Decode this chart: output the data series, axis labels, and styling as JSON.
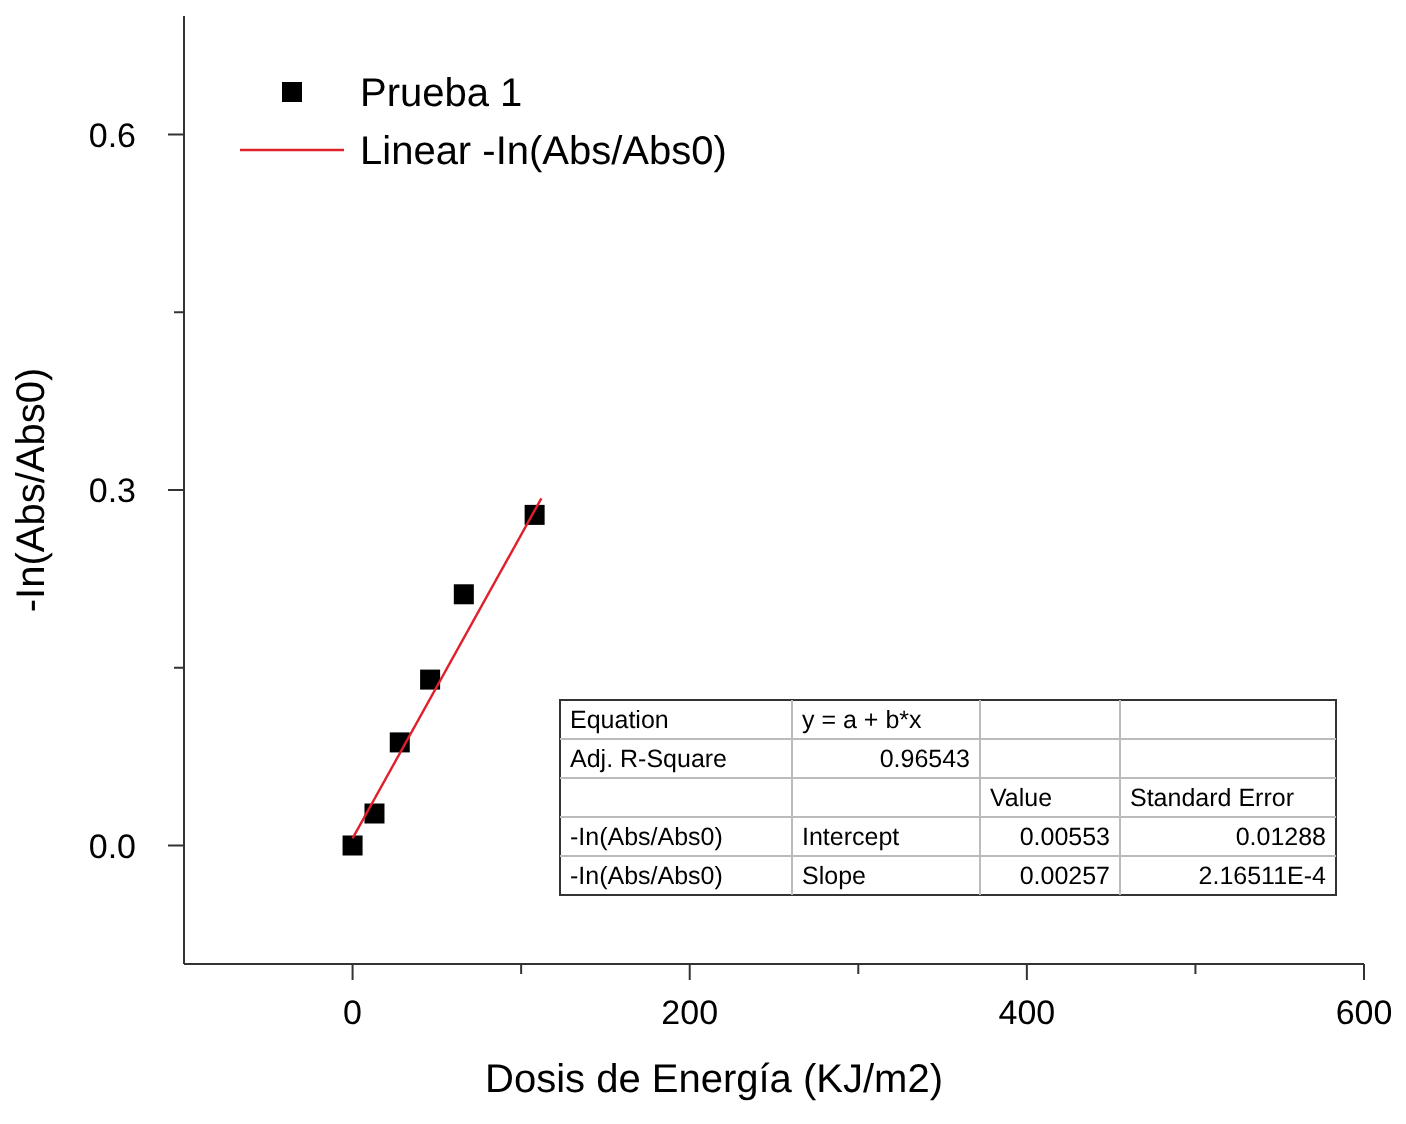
{
  "chart_data": {
    "type": "scatter",
    "xlabel": "Dosis de Energía (KJ/m2)",
    "ylabel": "-In(Abs/Abs0)",
    "xlim": [
      -100,
      600
    ],
    "ylim": [
      -0.1,
      0.7
    ],
    "xticks": [
      0,
      {
        "value": 100,
        "label": null
      },
      200,
      {
        "value": 300,
        "label": null
      },
      400,
      {
        "value": 500,
        "label": null
      },
      600
    ],
    "yticks": [
      {
        "value": 0,
        "label": "0.0"
      },
      {
        "value": 0.15,
        "label": null
      },
      0.3,
      {
        "value": 0.45,
        "label": null
      },
      0.6
    ],
    "grid": false,
    "legend": "top left",
    "series": [
      {
        "name": "Prueba 1",
        "marker": "square",
        "color": "#000000",
        "x": [
          0,
          13,
          28,
          46,
          66,
          108
        ],
        "values": [
          0,
          0.027,
          0.087,
          0.14,
          0.212,
          0.279
        ]
      },
      {
        "name": "Linear -In(Abs/Abs0)",
        "type": "line",
        "marker": "none",
        "line_style": "solid",
        "color": "#e0202a",
        "x": [
          0,
          112
        ],
        "values": [
          0.006,
          0.293
        ]
      }
    ],
    "annotations": [
      "Equation",
      "y = a + b*x",
      "Adj. R-Square",
      "0.96543",
      "Value",
      "Standard Error",
      "-In(Abs/Abs0)",
      "Intercept",
      "0.00553",
      "0.01288",
      "-In(Abs/Abs0)",
      "Slope",
      "0.00257",
      "2.16511E-4"
    ]
  }
}
